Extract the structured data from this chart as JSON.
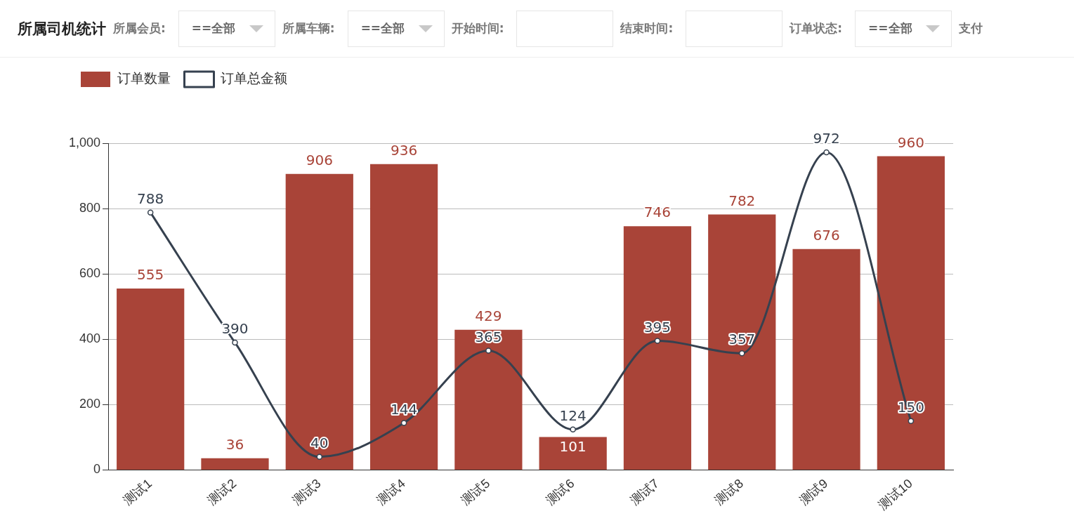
{
  "chart_data": {
    "type": "bar",
    "title": "所属司机统计",
    "annotations": [
      "所属会员:",
      "==全部",
      "所属车辆:",
      "==全部",
      "开始时间:",
      "结束时间:",
      "订单状态:",
      "==全部",
      "支付"
    ],
    "categories": [
      "测试1",
      "测试2",
      "测试3",
      "测试4",
      "测试5",
      "测试6",
      "测试7",
      "测试8",
      "测试9",
      "测试10"
    ],
    "series": [
      {
        "name": "订单数量",
        "color": "#a94438",
        "values": [
          555,
          36,
          906,
          936,
          429,
          101,
          746,
          782,
          676,
          960
        ]
      },
      {
        "name": "订单总金额",
        "type": "line",
        "color": "#36414f",
        "values": [
          788,
          390,
          40,
          144,
          365,
          124,
          395,
          357,
          972,
          150
        ]
      }
    ],
    "ylim": [
      0,
      1000
    ],
    "yticks": [
      0,
      200,
      400,
      600,
      800,
      {
        "value": 1000,
        "label": "1,000"
      }
    ],
    "grid": "y",
    "legend": "top left",
    "marker": "circle",
    "line_style": "solid",
    "data_labels": true
  }
}
